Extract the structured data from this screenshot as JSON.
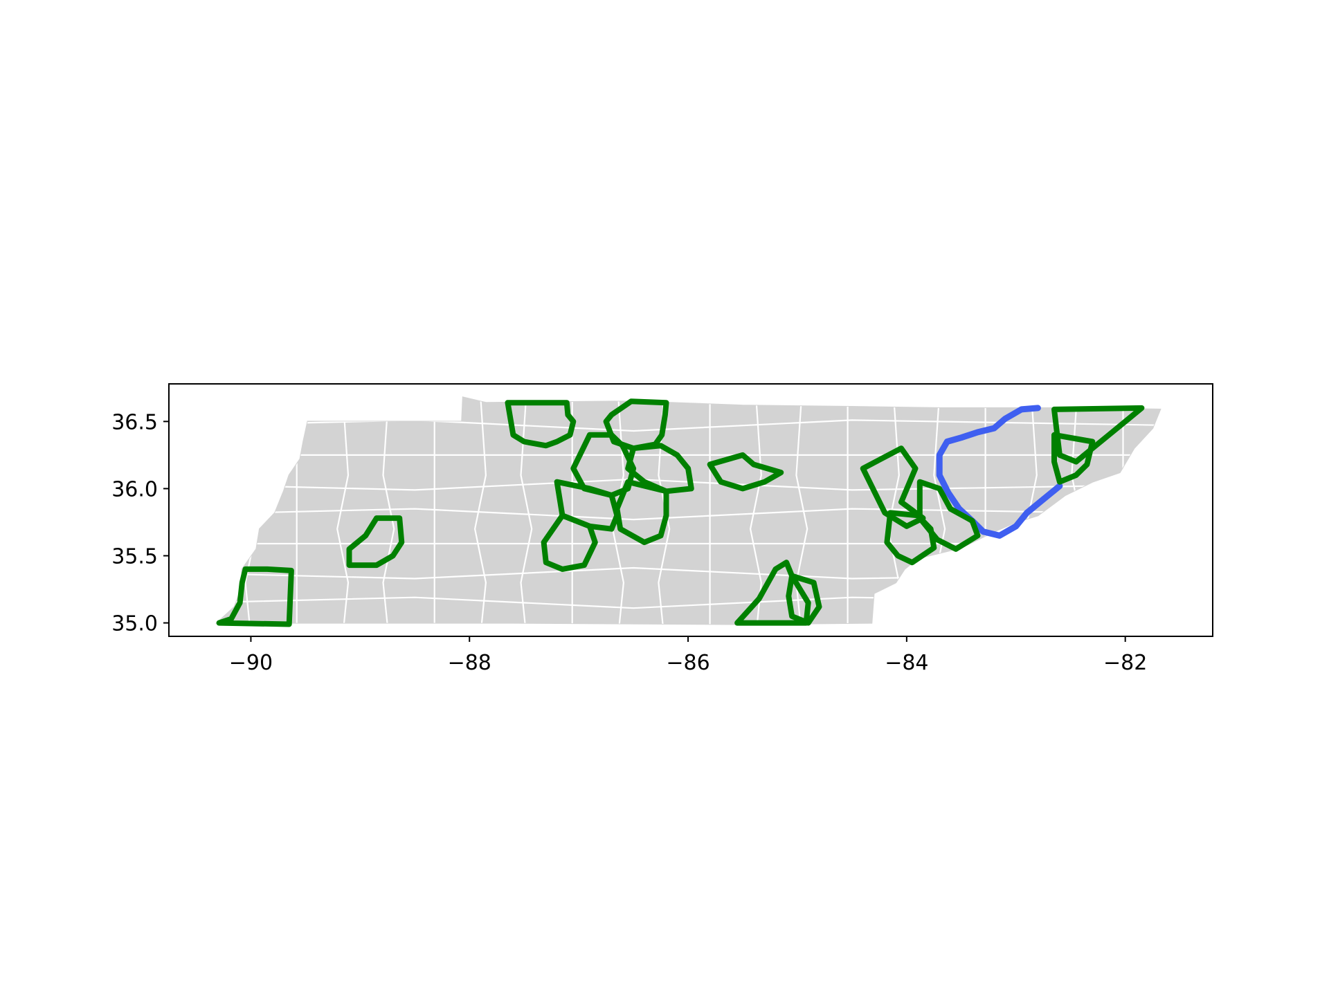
{
  "map": {
    "type": "county-map",
    "region_fill": "#d3d3d3",
    "county_border_color": "#ffffff",
    "highlight_color": "#008000",
    "route_color": "#3f5ff0",
    "x_axis": {
      "ticks": [
        -90,
        -88,
        -86,
        -84,
        -82
      ],
      "tick_labels": [
        "−90",
        "−88",
        "−86",
        "−84",
        "−82"
      ],
      "range": [
        -90.75,
        -81.2
      ]
    },
    "y_axis": {
      "ticks": [
        35.0,
        35.5,
        36.0,
        36.5
      ],
      "tick_labels": [
        "35.0",
        "35.5",
        "36.0",
        "36.5"
      ],
      "range": [
        34.9,
        36.78
      ]
    },
    "state_outline": [
      [
        -90.31,
        35.0
      ],
      [
        -90.15,
        35.12
      ],
      [
        -90.09,
        35.25
      ],
      [
        -90.08,
        35.4
      ],
      [
        -89.95,
        35.55
      ],
      [
        -89.92,
        35.7
      ],
      [
        -89.78,
        35.82
      ],
      [
        -89.7,
        35.98
      ],
      [
        -89.65,
        36.1
      ],
      [
        -89.55,
        36.22
      ],
      [
        -89.52,
        36.35
      ],
      [
        -89.48,
        36.5
      ],
      [
        -88.07,
        36.5
      ],
      [
        -88.06,
        36.68
      ],
      [
        -87.85,
        36.64
      ],
      [
        -86.5,
        36.65
      ],
      [
        -85.5,
        36.62
      ],
      [
        -84.5,
        36.61
      ],
      [
        -83.7,
        36.6
      ],
      [
        -82.6,
        36.6
      ],
      [
        -81.68,
        36.59
      ],
      [
        -81.75,
        36.45
      ],
      [
        -81.92,
        36.3
      ],
      [
        -82.05,
        36.12
      ],
      [
        -82.3,
        36.05
      ],
      [
        -82.55,
        35.95
      ],
      [
        -82.8,
        35.8
      ],
      [
        -83.0,
        35.75
      ],
      [
        -83.2,
        35.68
      ],
      [
        -83.5,
        35.56
      ],
      [
        -83.9,
        35.48
      ],
      [
        -84.02,
        35.4
      ],
      [
        -84.1,
        35.3
      ],
      [
        -84.3,
        35.22
      ],
      [
        -84.32,
        35.0
      ],
      [
        -85.6,
        34.99
      ],
      [
        -87.6,
        35.0
      ],
      [
        -88.2,
        35.0
      ],
      [
        -89.0,
        35.0
      ],
      [
        -90.31,
        35.0
      ]
    ],
    "highlighted_counties": [
      [
        [
          -87.65,
          36.64
        ],
        [
          -87.11,
          36.64
        ],
        [
          -87.1,
          36.55
        ],
        [
          -87.05,
          36.5
        ],
        [
          -87.08,
          36.4
        ],
        [
          -87.2,
          36.35
        ],
        [
          -87.3,
          36.32
        ],
        [
          -87.5,
          36.35
        ],
        [
          -87.6,
          36.4
        ]
      ],
      [
        [
          -86.52,
          36.65
        ],
        [
          -86.2,
          36.64
        ],
        [
          -86.21,
          36.55
        ],
        [
          -86.24,
          36.4
        ],
        [
          -86.3,
          36.33
        ],
        [
          -86.5,
          36.3
        ],
        [
          -86.68,
          36.35
        ],
        [
          -86.75,
          36.5
        ],
        [
          -86.7,
          36.55
        ]
      ],
      [
        [
          -86.9,
          36.4
        ],
        [
          -86.7,
          36.4
        ],
        [
          -86.6,
          36.32
        ],
        [
          -86.5,
          36.15
        ],
        [
          -86.55,
          36.0
        ],
        [
          -86.7,
          35.95
        ],
        [
          -86.95,
          36.0
        ],
        [
          -87.05,
          36.15
        ]
      ],
      [
        [
          -86.5,
          36.3
        ],
        [
          -86.25,
          36.32
        ],
        [
          -86.1,
          36.25
        ],
        [
          -86.0,
          36.15
        ],
        [
          -85.97,
          36.0
        ],
        [
          -86.2,
          35.98
        ],
        [
          -86.4,
          36.05
        ],
        [
          -86.55,
          36.15
        ]
      ],
      [
        [
          -87.2,
          36.05
        ],
        [
          -86.9,
          36.0
        ],
        [
          -86.7,
          35.95
        ],
        [
          -86.65,
          35.8
        ],
        [
          -86.7,
          35.7
        ],
        [
          -86.9,
          35.72
        ],
        [
          -87.15,
          35.8
        ]
      ],
      [
        [
          -86.55,
          36.05
        ],
        [
          -86.2,
          35.98
        ],
        [
          -86.2,
          35.8
        ],
        [
          -86.25,
          35.65
        ],
        [
          -86.4,
          35.6
        ],
        [
          -86.62,
          35.7
        ],
        [
          -86.65,
          35.85
        ]
      ],
      [
        [
          -87.15,
          35.8
        ],
        [
          -86.9,
          35.72
        ],
        [
          -86.85,
          35.6
        ],
        [
          -86.95,
          35.43
        ],
        [
          -87.15,
          35.4
        ],
        [
          -87.3,
          35.45
        ],
        [
          -87.32,
          35.6
        ]
      ],
      [
        [
          -85.8,
          36.18
        ],
        [
          -85.5,
          36.25
        ],
        [
          -85.4,
          36.18
        ],
        [
          -85.15,
          36.12
        ],
        [
          -85.3,
          36.05
        ],
        [
          -85.5,
          36.0
        ],
        [
          -85.7,
          36.05
        ]
      ],
      [
        [
          -84.4,
          36.15
        ],
        [
          -84.05,
          36.3
        ],
        [
          -83.92,
          36.15
        ],
        [
          -84.05,
          35.9
        ],
        [
          -83.85,
          35.78
        ],
        [
          -84.0,
          35.72
        ],
        [
          -84.2,
          35.82
        ]
      ],
      [
        [
          -83.88,
          36.05
        ],
        [
          -83.7,
          36.0
        ],
        [
          -83.6,
          35.85
        ],
        [
          -83.4,
          35.76
        ],
        [
          -83.35,
          35.65
        ],
        [
          -83.55,
          35.55
        ],
        [
          -83.72,
          35.62
        ],
        [
          -83.88,
          35.78
        ]
      ],
      [
        [
          -84.15,
          35.82
        ],
        [
          -83.9,
          35.8
        ],
        [
          -83.78,
          35.7
        ],
        [
          -83.75,
          35.56
        ],
        [
          -83.95,
          35.45
        ],
        [
          -84.08,
          35.5
        ],
        [
          -84.18,
          35.6
        ]
      ],
      [
        [
          -85.55,
          35.0
        ],
        [
          -85.3,
          35.0
        ],
        [
          -84.92,
          35.0
        ],
        [
          -84.9,
          35.15
        ],
        [
          -85.05,
          35.35
        ],
        [
          -85.1,
          35.45
        ],
        [
          -85.2,
          35.4
        ],
        [
          -85.35,
          35.18
        ]
      ],
      [
        [
          -85.05,
          35.35
        ],
        [
          -84.85,
          35.3
        ],
        [
          -84.8,
          35.12
        ],
        [
          -84.9,
          35.0
        ],
        [
          -85.05,
          35.05
        ],
        [
          -85.08,
          35.2
        ]
      ],
      [
        [
          -89.1,
          35.55
        ],
        [
          -88.95,
          35.65
        ],
        [
          -88.85,
          35.78
        ],
        [
          -88.64,
          35.78
        ],
        [
          -88.62,
          35.6
        ],
        [
          -88.7,
          35.5
        ],
        [
          -88.85,
          35.43
        ],
        [
          -89.1,
          35.43
        ]
      ],
      [
        [
          -90.29,
          35.0
        ],
        [
          -89.65,
          34.99
        ],
        [
          -89.63,
          35.39
        ],
        [
          -89.85,
          35.4
        ],
        [
          -90.05,
          35.4
        ],
        [
          -90.08,
          35.3
        ],
        [
          -90.1,
          35.15
        ],
        [
          -90.18,
          35.03
        ]
      ],
      [
        [
          -82.65,
          36.59
        ],
        [
          -81.85,
          36.6
        ],
        [
          -82.0,
          36.5
        ],
        [
          -82.15,
          36.4
        ],
        [
          -82.3,
          36.3
        ],
        [
          -82.45,
          36.2
        ],
        [
          -82.6,
          36.25
        ],
        [
          -82.63,
          36.45
        ]
      ],
      [
        [
          -82.65,
          36.4
        ],
        [
          -82.3,
          36.35
        ],
        [
          -82.35,
          36.18
        ],
        [
          -82.45,
          36.1
        ],
        [
          -82.6,
          36.05
        ],
        [
          -82.65,
          36.2
        ]
      ]
    ],
    "route": [
      [
        -82.8,
        36.6
      ],
      [
        -82.95,
        36.59
      ],
      [
        -83.1,
        36.52
      ],
      [
        -83.2,
        36.45
      ],
      [
        -83.35,
        36.42
      ],
      [
        -83.5,
        36.38
      ],
      [
        -83.63,
        36.35
      ],
      [
        -83.7,
        36.25
      ],
      [
        -83.7,
        36.1
      ],
      [
        -83.62,
        35.97
      ],
      [
        -83.52,
        35.85
      ],
      [
        -83.4,
        35.76
      ],
      [
        -83.3,
        35.68
      ],
      [
        -83.15,
        35.65
      ],
      [
        -83.0,
        35.72
      ],
      [
        -82.9,
        35.82
      ],
      [
        -82.75,
        35.92
      ],
      [
        -82.6,
        36.02
      ]
    ]
  }
}
